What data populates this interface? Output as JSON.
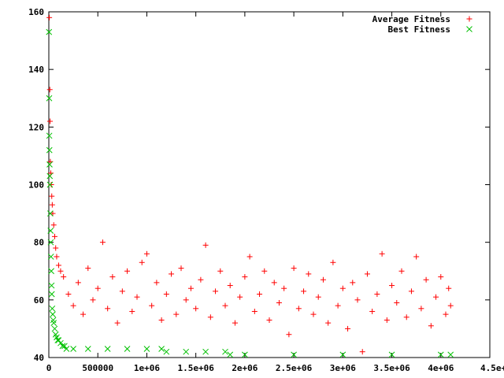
{
  "chart_data": {
    "type": "scatter",
    "title": "",
    "xlabel": "",
    "ylabel": "",
    "xlim": [
      0,
      4500000
    ],
    "ylim": [
      40,
      160
    ],
    "grid": false,
    "legend_position": "top-right",
    "x_ticks": [
      {
        "value": 0,
        "label": "0"
      },
      {
        "value": 500000,
        "label": "500000"
      },
      {
        "value": 1000000,
        "label": "1e+06"
      },
      {
        "value": 1500000,
        "label": "1.5e+06"
      },
      {
        "value": 2000000,
        "label": "2e+06"
      },
      {
        "value": 2500000,
        "label": "2.5e+06"
      },
      {
        "value": 3000000,
        "label": "3e+06"
      },
      {
        "value": 3500000,
        "label": "3.5e+06"
      },
      {
        "value": 4000000,
        "label": "4e+06"
      },
      {
        "value": 4500000,
        "label": "4.5e+06"
      }
    ],
    "y_ticks": [
      {
        "value": 40,
        "label": "40"
      },
      {
        "value": 60,
        "label": "60"
      },
      {
        "value": 80,
        "label": "80"
      },
      {
        "value": 100,
        "label": "100"
      },
      {
        "value": 120,
        "label": "120"
      },
      {
        "value": 140,
        "label": "140"
      },
      {
        "value": 160,
        "label": "160"
      }
    ],
    "series": [
      {
        "name": "Average Fitness",
        "marker": "plus",
        "color": "#ff0000",
        "points": [
          [
            5000,
            158
          ],
          [
            10000,
            133
          ],
          [
            12000,
            122
          ],
          [
            15000,
            108
          ],
          [
            20000,
            104
          ],
          [
            25000,
            100
          ],
          [
            30000,
            96
          ],
          [
            35000,
            93
          ],
          [
            40000,
            90
          ],
          [
            50000,
            86
          ],
          [
            60000,
            82
          ],
          [
            70000,
            78
          ],
          [
            80000,
            75
          ],
          [
            100000,
            72
          ],
          [
            120000,
            70
          ],
          [
            150000,
            68
          ],
          [
            200000,
            62
          ],
          [
            250000,
            58
          ],
          [
            300000,
            66
          ],
          [
            350000,
            55
          ],
          [
            400000,
            71
          ],
          [
            450000,
            60
          ],
          [
            500000,
            64
          ],
          [
            550000,
            80
          ],
          [
            600000,
            57
          ],
          [
            650000,
            68
          ],
          [
            700000,
            52
          ],
          [
            750000,
            63
          ],
          [
            800000,
            70
          ],
          [
            850000,
            56
          ],
          [
            900000,
            61
          ],
          [
            950000,
            73
          ],
          [
            1000000,
            76
          ],
          [
            1050000,
            58
          ],
          [
            1100000,
            66
          ],
          [
            1150000,
            53
          ],
          [
            1200000,
            62
          ],
          [
            1250000,
            69
          ],
          [
            1300000,
            55
          ],
          [
            1350000,
            71
          ],
          [
            1400000,
            60
          ],
          [
            1450000,
            64
          ],
          [
            1500000,
            57
          ],
          [
            1550000,
            67
          ],
          [
            1600000,
            79
          ],
          [
            1650000,
            54
          ],
          [
            1700000,
            63
          ],
          [
            1750000,
            70
          ],
          [
            1800000,
            58
          ],
          [
            1850000,
            65
          ],
          [
            1900000,
            52
          ],
          [
            1950000,
            61
          ],
          [
            2000000,
            68
          ],
          [
            2050000,
            75
          ],
          [
            2100000,
            56
          ],
          [
            2150000,
            62
          ],
          [
            2200000,
            70
          ],
          [
            2250000,
            53
          ],
          [
            2300000,
            66
          ],
          [
            2350000,
            59
          ],
          [
            2400000,
            64
          ],
          [
            2450000,
            48
          ],
          [
            2500000,
            71
          ],
          [
            2550000,
            57
          ],
          [
            2600000,
            63
          ],
          [
            2650000,
            69
          ],
          [
            2700000,
            55
          ],
          [
            2750000,
            61
          ],
          [
            2800000,
            67
          ],
          [
            2850000,
            52
          ],
          [
            2900000,
            73
          ],
          [
            2950000,
            58
          ],
          [
            3000000,
            64
          ],
          [
            3050000,
            50
          ],
          [
            3100000,
            66
          ],
          [
            3150000,
            60
          ],
          [
            3200000,
            42
          ],
          [
            3250000,
            69
          ],
          [
            3300000,
            56
          ],
          [
            3350000,
            62
          ],
          [
            3400000,
            76
          ],
          [
            3450000,
            53
          ],
          [
            3500000,
            65
          ],
          [
            3550000,
            59
          ],
          [
            3600000,
            70
          ],
          [
            3650000,
            54
          ],
          [
            3700000,
            63
          ],
          [
            3750000,
            75
          ],
          [
            3800000,
            57
          ],
          [
            3850000,
            67
          ],
          [
            3900000,
            51
          ],
          [
            3950000,
            61
          ],
          [
            4000000,
            68
          ],
          [
            4050000,
            55
          ],
          [
            4080000,
            64
          ],
          [
            4100000,
            58
          ]
        ]
      },
      {
        "name": "Best Fitness",
        "marker": "cross",
        "color": "#00c000",
        "points": [
          [
            2000,
            153
          ],
          [
            4000,
            130
          ],
          [
            5000,
            117
          ],
          [
            6000,
            112
          ],
          [
            8000,
            107
          ],
          [
            10000,
            103
          ],
          [
            12000,
            100
          ],
          [
            15000,
            90
          ],
          [
            18000,
            84
          ],
          [
            20000,
            80
          ],
          [
            22000,
            75
          ],
          [
            25000,
            70
          ],
          [
            28000,
            65
          ],
          [
            30000,
            62
          ],
          [
            35000,
            57
          ],
          [
            40000,
            55
          ],
          [
            45000,
            53
          ],
          [
            50000,
            52
          ],
          [
            60000,
            50
          ],
          [
            70000,
            48
          ],
          [
            80000,
            47
          ],
          [
            90000,
            46
          ],
          [
            100000,
            46
          ],
          [
            120000,
            45
          ],
          [
            140000,
            44
          ],
          [
            160000,
            44
          ],
          [
            180000,
            43
          ],
          [
            250000,
            43
          ],
          [
            400000,
            43
          ],
          [
            600000,
            43
          ],
          [
            800000,
            43
          ],
          [
            1000000,
            43
          ],
          [
            1150000,
            43
          ],
          [
            1200000,
            42
          ],
          [
            1400000,
            42
          ],
          [
            1600000,
            42
          ],
          [
            1800000,
            42
          ],
          [
            1850000,
            41
          ],
          [
            2000000,
            41
          ],
          [
            2500000,
            41
          ],
          [
            3000000,
            41
          ],
          [
            3500000,
            41
          ],
          [
            4000000,
            41
          ],
          [
            4100000,
            41
          ]
        ]
      }
    ]
  }
}
